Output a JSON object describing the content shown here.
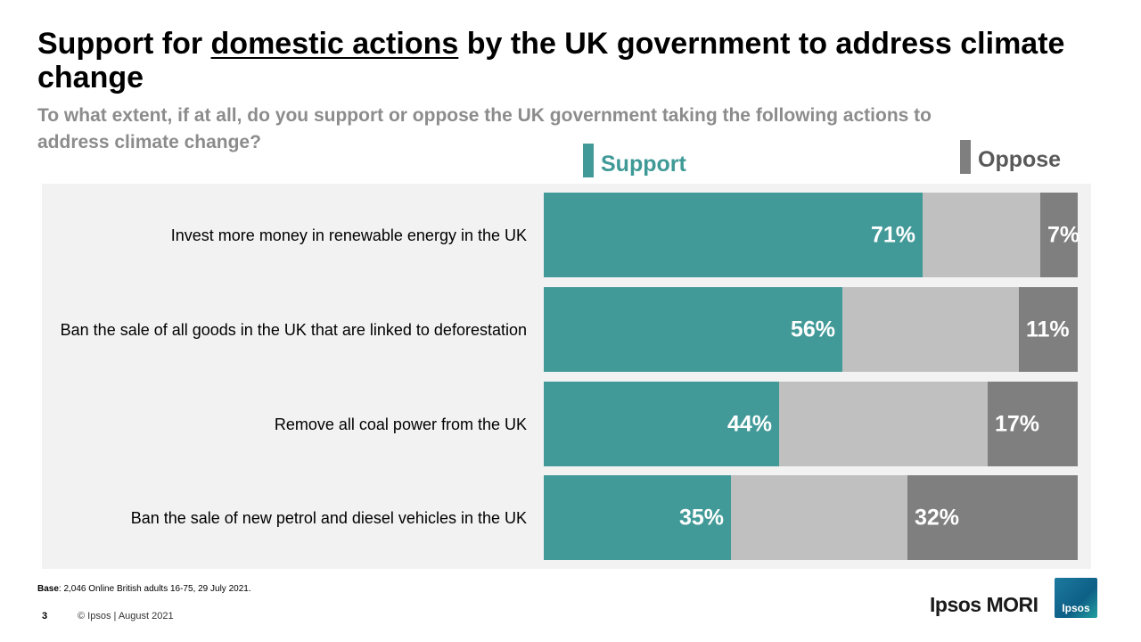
{
  "header": {
    "title_pre": "Support for ",
    "title_underlined": "domestic actions",
    "title_post": " by the UK government to address climate change",
    "subtitle": "To what extent, if at all, do you support or oppose the UK government taking the following actions to address climate change?"
  },
  "colors": {
    "support": "#429a98",
    "neutral": "#c0c0c0",
    "oppose": "#7f7f7f",
    "support_text": "#3f9a97",
    "oppose_text": "#595959"
  },
  "chart_data": {
    "type": "bar",
    "orientation": "horizontal",
    "stacked": true,
    "legend": [
      "Support",
      "Oppose"
    ],
    "categories": [
      "Invest more money in renewable energy in the UK",
      "Ban the sale of all goods in the UK that are linked to deforestation",
      "Remove all coal power from the UK",
      "Ban the sale of new petrol and diesel vehicles in the UK"
    ],
    "series": [
      {
        "name": "Support",
        "values": [
          71,
          56,
          44,
          35
        ],
        "labels": [
          "71%",
          "56%",
          "44%",
          "35%"
        ]
      },
      {
        "name": "",
        "values": [
          22,
          33,
          39,
          33
        ],
        "labels": [
          "",
          "",
          "",
          ""
        ]
      },
      {
        "name": "Oppose",
        "values": [
          7,
          11,
          17,
          32
        ],
        "labels": [
          "7%",
          "11%",
          "17%",
          "32%"
        ]
      }
    ],
    "xlim": [
      0,
      100
    ]
  },
  "footer": {
    "base_label": "Base",
    "base_text": ": 2,046 Online British adults 16-75, 29 July 2021.",
    "page_number": "3",
    "copyright": "© Ipsos | August 2021",
    "brand": "Ipsos MORI",
    "logo_text": "Ipsos"
  }
}
